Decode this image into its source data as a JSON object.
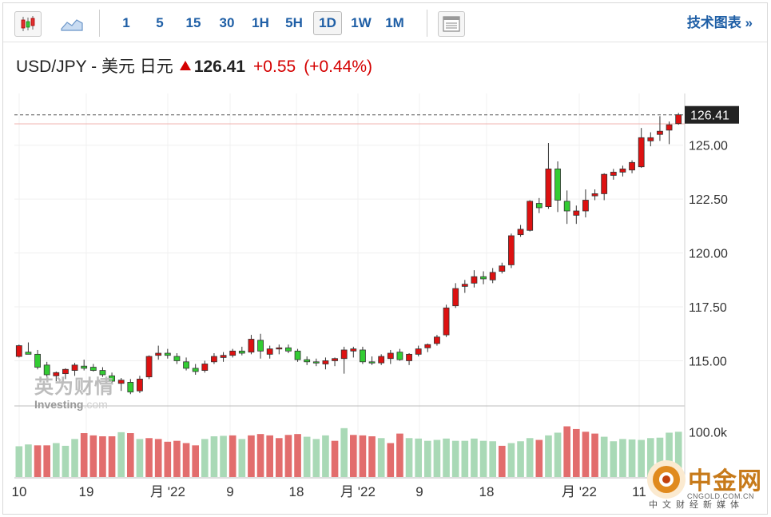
{
  "toolbar": {
    "chart_types": [
      "candlestick-icon",
      "area-chart-icon"
    ],
    "timeframes": [
      {
        "label": "1",
        "active": false
      },
      {
        "label": "5",
        "active": false
      },
      {
        "label": "15",
        "active": false
      },
      {
        "label": "30",
        "active": false
      },
      {
        "label": "1H",
        "active": false
      },
      {
        "label": "5H",
        "active": false
      },
      {
        "label": "1D",
        "active": true
      },
      {
        "label": "1W",
        "active": false
      },
      {
        "label": "1M",
        "active": false
      }
    ],
    "layout_icon": "panel-icon",
    "tech_chart_link": "技术图表 »"
  },
  "header": {
    "symbol": "USD/JPY - 美元 日元",
    "price": "126.41",
    "change": "+0.55",
    "change_pct": "(+0.44%)"
  },
  "colors": {
    "up": "#dd1111",
    "down": "#33cc33",
    "vol_up": "#e26d6d",
    "vol_down": "#a9d9b6",
    "accent": "#1f5fa6"
  },
  "watermark": {
    "cn": "英为财情",
    "en_a": "Investing",
    "en_b": ".com"
  },
  "logo": {
    "cn": "中金网",
    "en": "CNGOLD.COM.CN",
    "tag": "中文财经新媒体"
  },
  "chart_data": {
    "type": "candlestick",
    "price_axis": {
      "ticks": [
        "125.00",
        "122.50",
        "120.00",
        "117.50",
        "115.00"
      ],
      "current_label": "126.41",
      "range": [
        113.2,
        127.4
      ]
    },
    "volume_axis": {
      "ticks": [
        "100.0k"
      ],
      "range": [
        0,
        150000
      ]
    },
    "x_ticks": [
      "10",
      "19",
      "月 '22",
      "9",
      "18",
      "月 '22",
      "9",
      "18",
      "月 '22",
      "11"
    ],
    "ohlc": [
      [
        115.2,
        115.75,
        115.15,
        115.7
      ],
      [
        115.4,
        115.85,
        115.35,
        115.3
      ],
      [
        115.3,
        115.5,
        114.6,
        114.7
      ],
      [
        114.8,
        114.95,
        114.25,
        114.35
      ],
      [
        114.3,
        114.5,
        114.05,
        114.45
      ],
      [
        114.4,
        114.65,
        114.15,
        114.6
      ],
      [
        114.55,
        114.9,
        114.3,
        114.8
      ],
      [
        114.75,
        115.05,
        114.55,
        114.65
      ],
      [
        114.7,
        114.85,
        114.5,
        114.55
      ],
      [
        114.55,
        114.7,
        114.25,
        114.35
      ],
      [
        114.3,
        114.45,
        113.9,
        114.05
      ],
      [
        113.95,
        114.2,
        113.6,
        114.1
      ],
      [
        114.0,
        114.15,
        113.45,
        113.55
      ],
      [
        113.6,
        114.3,
        113.5,
        114.15
      ],
      [
        114.25,
        115.25,
        114.15,
        115.2
      ],
      [
        115.25,
        115.7,
        115.05,
        115.35
      ],
      [
        115.35,
        115.55,
        115.1,
        115.25
      ],
      [
        115.2,
        115.35,
        114.85,
        115.0
      ],
      [
        114.95,
        115.15,
        114.55,
        114.65
      ],
      [
        114.65,
        114.85,
        114.35,
        114.5
      ],
      [
        114.55,
        115.0,
        114.45,
        114.85
      ],
      [
        114.95,
        115.35,
        114.85,
        115.2
      ],
      [
        115.15,
        115.4,
        114.95,
        115.25
      ],
      [
        115.25,
        115.55,
        115.15,
        115.45
      ],
      [
        115.45,
        115.65,
        115.25,
        115.35
      ],
      [
        115.4,
        116.2,
        115.3,
        116.0
      ],
      [
        115.95,
        116.25,
        115.1,
        115.45
      ],
      [
        115.3,
        115.7,
        115.1,
        115.55
      ],
      [
        115.55,
        115.75,
        115.3,
        115.6
      ],
      [
        115.6,
        115.75,
        115.35,
        115.45
      ],
      [
        115.45,
        115.55,
        114.95,
        115.05
      ],
      [
        115.05,
        115.2,
        114.8,
        114.95
      ],
      [
        114.95,
        115.1,
        114.75,
        114.9
      ],
      [
        114.85,
        115.15,
        114.6,
        115.0
      ],
      [
        115.0,
        115.15,
        114.75,
        115.1
      ],
      [
        115.1,
        115.65,
        114.4,
        115.5
      ],
      [
        115.45,
        115.65,
        115.15,
        115.55
      ],
      [
        115.5,
        115.65,
        114.85,
        114.95
      ],
      [
        114.95,
        115.2,
        114.8,
        114.9
      ],
      [
        114.9,
        115.3,
        114.8,
        115.2
      ],
      [
        115.1,
        115.5,
        114.85,
        115.35
      ],
      [
        115.4,
        115.55,
        115.0,
        115.05
      ],
      [
        115.0,
        115.35,
        114.8,
        115.3
      ],
      [
        115.3,
        115.7,
        115.2,
        115.55
      ],
      [
        115.6,
        115.8,
        115.4,
        115.75
      ],
      [
        115.8,
        116.2,
        115.7,
        116.1
      ],
      [
        116.2,
        117.6,
        116.1,
        117.45
      ],
      [
        117.55,
        118.6,
        117.45,
        118.35
      ],
      [
        118.45,
        118.75,
        118.15,
        118.55
      ],
      [
        118.6,
        119.2,
        118.4,
        118.9
      ],
      [
        118.9,
        119.15,
        118.55,
        118.8
      ],
      [
        118.75,
        119.3,
        118.6,
        119.1
      ],
      [
        119.15,
        119.55,
        119.05,
        119.4
      ],
      [
        119.45,
        120.9,
        119.3,
        120.8
      ],
      [
        120.85,
        121.3,
        120.75,
        121.1
      ],
      [
        121.05,
        122.45,
        121.0,
        122.4
      ],
      [
        122.3,
        122.55,
        121.85,
        122.1
      ],
      [
        122.15,
        125.1,
        122.05,
        123.9
      ],
      [
        123.9,
        124.25,
        121.9,
        122.45
      ],
      [
        122.4,
        122.9,
        121.35,
        121.95
      ],
      [
        121.75,
        122.2,
        121.35,
        121.95
      ],
      [
        121.95,
        122.95,
        121.65,
        122.45
      ],
      [
        122.65,
        122.95,
        122.45,
        122.75
      ],
      [
        122.75,
        123.7,
        122.45,
        123.65
      ],
      [
        123.6,
        123.9,
        123.4,
        123.75
      ],
      [
        123.75,
        124.05,
        123.55,
        123.9
      ],
      [
        123.85,
        124.3,
        123.7,
        124.2
      ],
      [
        124.0,
        125.8,
        123.95,
        125.35
      ],
      [
        125.2,
        125.6,
        124.95,
        125.35
      ],
      [
        125.5,
        126.35,
        125.2,
        125.65
      ],
      [
        125.7,
        126.1,
        125.05,
        125.95
      ],
      [
        126.0,
        126.5,
        125.95,
        126.41
      ]
    ],
    "volume": [
      [
        68000,
        0
      ],
      [
        72000,
        0
      ],
      [
        70000,
        1
      ],
      [
        70000,
        1
      ],
      [
        75000,
        0
      ],
      [
        69000,
        0
      ],
      [
        84000,
        0
      ],
      [
        97000,
        1
      ],
      [
        92000,
        1
      ],
      [
        90000,
        1
      ],
      [
        90000,
        1
      ],
      [
        99000,
        0
      ],
      [
        97000,
        1
      ],
      [
        84000,
        0
      ],
      [
        86000,
        1
      ],
      [
        84000,
        1
      ],
      [
        78000,
        1
      ],
      [
        80000,
        1
      ],
      [
        75000,
        1
      ],
      [
        70000,
        1
      ],
      [
        84000,
        0
      ],
      [
        90000,
        0
      ],
      [
        91000,
        0
      ],
      [
        92000,
        1
      ],
      [
        84000,
        0
      ],
      [
        92000,
        1
      ],
      [
        95000,
        1
      ],
      [
        92000,
        1
      ],
      [
        86000,
        1
      ],
      [
        93000,
        1
      ],
      [
        95000,
        1
      ],
      [
        89000,
        0
      ],
      [
        84000,
        0
      ],
      [
        92000,
        0
      ],
      [
        80000,
        1
      ],
      [
        108000,
        0
      ],
      [
        93000,
        1
      ],
      [
        92000,
        1
      ],
      [
        90000,
        1
      ],
      [
        86000,
        0
      ],
      [
        75000,
        1
      ],
      [
        96000,
        1
      ],
      [
        86000,
        0
      ],
      [
        85000,
        0
      ],
      [
        80000,
        0
      ],
      [
        82000,
        0
      ],
      [
        85000,
        0
      ],
      [
        80000,
        0
      ],
      [
        80000,
        0
      ],
      [
        85000,
        0
      ],
      [
        80000,
        0
      ],
      [
        79000,
        0
      ],
      [
        69000,
        1
      ],
      [
        75000,
        0
      ],
      [
        79000,
        0
      ],
      [
        86000,
        0
      ],
      [
        82000,
        1
      ],
      [
        92000,
        0
      ],
      [
        98000,
        0
      ],
      [
        112000,
        1
      ],
      [
        106000,
        1
      ],
      [
        100000,
        1
      ],
      [
        96000,
        1
      ],
      [
        89000,
        0
      ],
      [
        79000,
        0
      ],
      [
        84000,
        0
      ],
      [
        83000,
        0
      ],
      [
        82000,
        0
      ],
      [
        86000,
        0
      ],
      [
        87000,
        0
      ],
      [
        98000,
        0
      ],
      [
        100000,
        0
      ]
    ]
  }
}
